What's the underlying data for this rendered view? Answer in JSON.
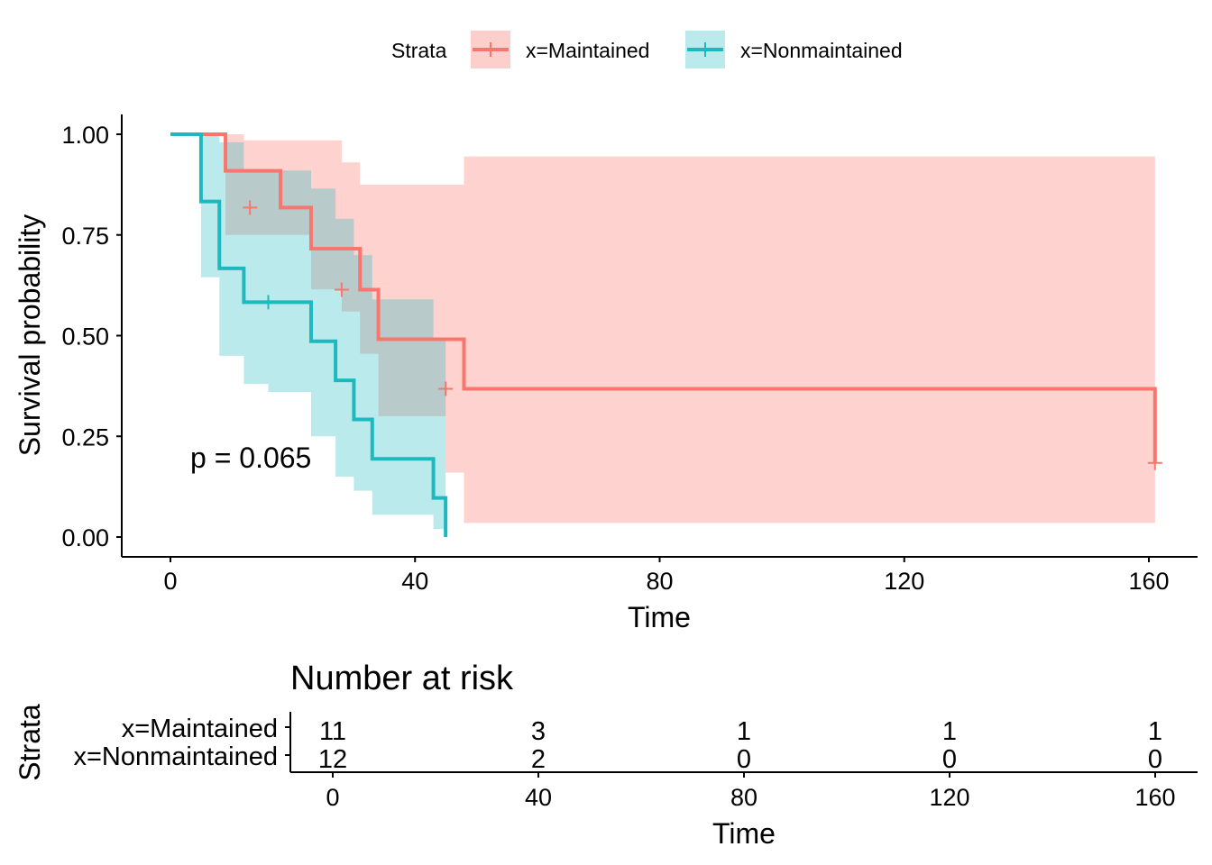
{
  "colors": {
    "maintained": "#F8766D",
    "nonmaintained": "#1EB9BF",
    "maintained_band": "#F8766D",
    "nonmaintained_band": "#1EB9BF"
  },
  "legend": {
    "title": "Strata",
    "items": [
      {
        "label": "x=Maintained",
        "key": "maintained"
      },
      {
        "label": "x=Nonmaintained",
        "key": "nonmaintained"
      }
    ]
  },
  "chart_data": [
    {
      "type": "line",
      "kind": "kaplan-meier-step",
      "xlabel": "Time",
      "ylabel": "Survival probability",
      "xlim": [
        0,
        160
      ],
      "ylim": [
        0,
        1
      ],
      "x_ticks": [
        0,
        40,
        80,
        120,
        160
      ],
      "y_ticks": [
        0,
        0.25,
        0.5,
        0.75,
        1
      ],
      "y_tick_labels": [
        "0.00",
        "0.25",
        "0.50",
        "0.75",
        "1.00"
      ],
      "x_tick_labels": [
        "0",
        "40",
        "80",
        "120",
        "160"
      ],
      "annotation": "p = 0.065",
      "legend_position": "top",
      "series": [
        {
          "name": "x=Maintained",
          "key": "maintained",
          "steps": [
            [
              0,
              1.0
            ],
            [
              9,
              0.909
            ],
            [
              18,
              0.818
            ],
            [
              23,
              0.716
            ],
            [
              31,
              0.614
            ],
            [
              34,
              0.491
            ],
            [
              48,
              0.368
            ],
            [
              161,
              0.184
            ]
          ],
          "end": 161,
          "censored": [
            [
              13,
              0.818
            ],
            [
              28,
              0.614
            ],
            [
              45,
              0.368
            ],
            [
              161,
              0.184
            ]
          ],
          "ci": [
            [
              0,
              1.0,
              1.0
            ],
            [
              9,
              1.0,
              0.75
            ],
            [
              12,
              0.985,
              0.75
            ],
            [
              23,
              0.985,
              0.615
            ],
            [
              28,
              0.93,
              0.56
            ],
            [
              31,
              0.875,
              0.455
            ],
            [
              34,
              0.875,
              0.3
            ],
            [
              45,
              0.875,
              0.16
            ],
            [
              48,
              0.945,
              0.035
            ],
            [
              161,
              0.945,
              0.035
            ]
          ]
        },
        {
          "name": "x=Nonmaintained",
          "key": "nonmaintained",
          "steps": [
            [
              0,
              1.0
            ],
            [
              5,
              0.833
            ],
            [
              8,
              0.667
            ],
            [
              12,
              0.583
            ],
            [
              23,
              0.486
            ],
            [
              27,
              0.389
            ],
            [
              30,
              0.292
            ],
            [
              33,
              0.194
            ],
            [
              43,
              0.097
            ],
            [
              45,
              0.0
            ]
          ],
          "end": 45,
          "censored": [
            [
              16,
              0.583
            ]
          ],
          "ci": [
            [
              0,
              1.0,
              1.0
            ],
            [
              5,
              1.0,
              0.645
            ],
            [
              8,
              0.98,
              0.45
            ],
            [
              12,
              0.91,
              0.38
            ],
            [
              16,
              0.91,
              0.36
            ],
            [
              23,
              0.865,
              0.25
            ],
            [
              27,
              0.79,
              0.15
            ],
            [
              30,
              0.7,
              0.115
            ],
            [
              33,
              0.59,
              0.055
            ],
            [
              43,
              0.49,
              0.02
            ],
            [
              45,
              0.49,
              0.02
            ]
          ]
        }
      ]
    },
    {
      "type": "table",
      "title": "Number at risk",
      "xlabel": "Time",
      "ylabel": "Strata",
      "x_ticks": [
        0,
        40,
        80,
        120,
        160
      ],
      "x_tick_labels": [
        "0",
        "40",
        "80",
        "120",
        "160"
      ],
      "rows": [
        {
          "label": "x=Maintained",
          "key": "maintained",
          "values": [
            "11",
            "3",
            "1",
            "1",
            "1"
          ]
        },
        {
          "label": "x=Nonmaintained",
          "key": "nonmaintained",
          "values": [
            "12",
            "2",
            "0",
            "0",
            "0"
          ]
        }
      ]
    }
  ]
}
